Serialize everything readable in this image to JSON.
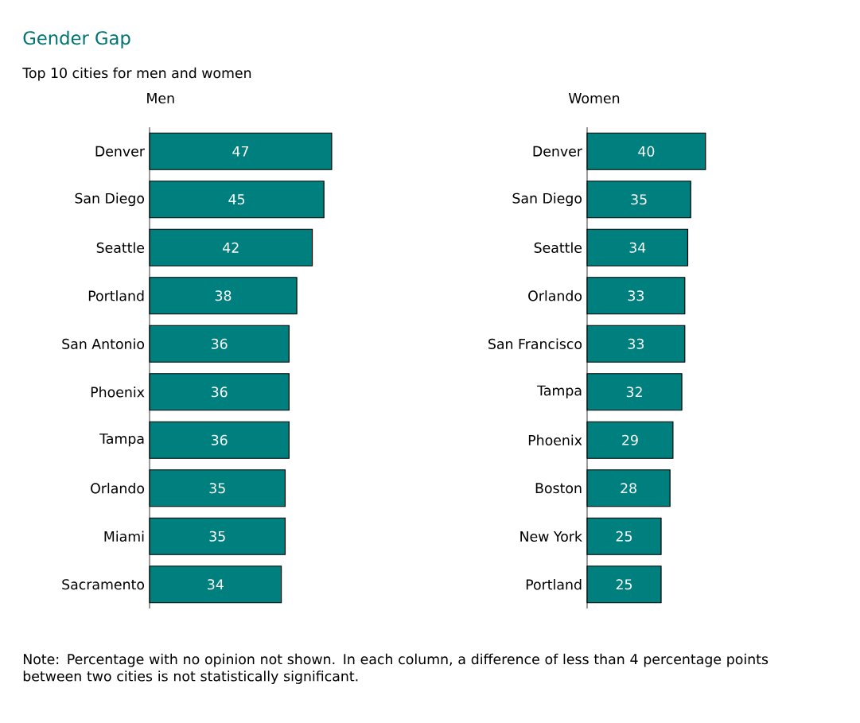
{
  "chart_data": [
    {
      "type": "other",
      "title": "Gender Gap",
      "subtitle": "Top 10 cities for men and women",
      "annotations": [
        "Note: Percentage with no opinion not shown. In each column, a difference of less than 4 percentage points between two cities is not statistically significant."
      ]
    },
    {
      "type": "bar",
      "orientation": "horizontal",
      "title": "Men",
      "categories": [
        "Denver",
        "San Diego",
        "Seattle",
        "Portland",
        "San Antonio",
        "Phoenix",
        "Tampa",
        "Orlando",
        "Miami",
        "Sacramento"
      ],
      "values": [
        47,
        45,
        42,
        38,
        36,
        36,
        36,
        35,
        35,
        34
      ],
      "color": "#007f7f",
      "data_labels": true,
      "tick_labels": "y"
    },
    {
      "type": "bar",
      "orientation": "horizontal",
      "title": "Women",
      "categories": [
        "Denver",
        "San Diego",
        "Seattle",
        "Orlando",
        "San Francisco",
        "Tampa",
        "Phoenix",
        "Boston",
        "New York",
        "Portland"
      ],
      "values": [
        40,
        35,
        34,
        33,
        33,
        32,
        29,
        28,
        25,
        25
      ],
      "color": "#007f7f",
      "data_labels": true,
      "tick_labels": "y"
    }
  ]
}
